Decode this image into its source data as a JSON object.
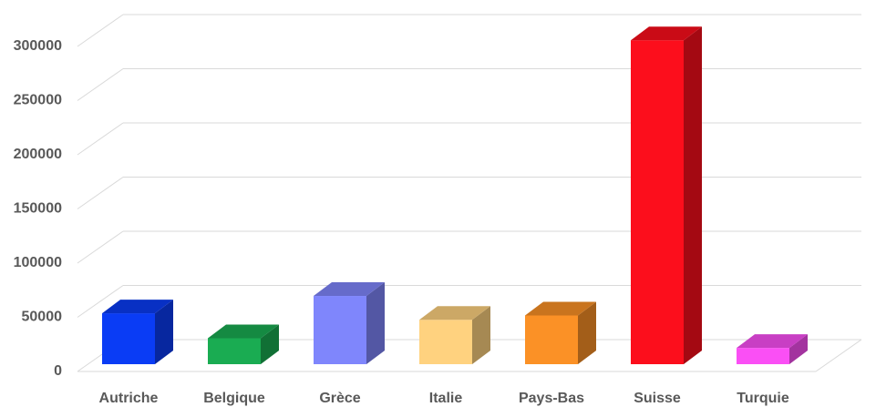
{
  "chart_data": {
    "type": "bar3d",
    "categories": [
      "Autriche",
      "Belgique",
      "Grèce",
      "Italie",
      "Pays-Bas",
      "Suisse",
      "Turquie"
    ],
    "values": [
      47000,
      24000,
      63000,
      41000,
      45000,
      299000,
      15000
    ],
    "colors": [
      "#0a3cf5",
      "#1aac52",
      "#7f86fc",
      "#ffd27f",
      "#fb9126",
      "#fc0e1c",
      "#fa4ff5"
    ],
    "ylim": [
      0,
      300000
    ],
    "yticks": [
      0,
      50000,
      100000,
      150000,
      200000,
      250000,
      300000
    ],
    "grid": true
  }
}
